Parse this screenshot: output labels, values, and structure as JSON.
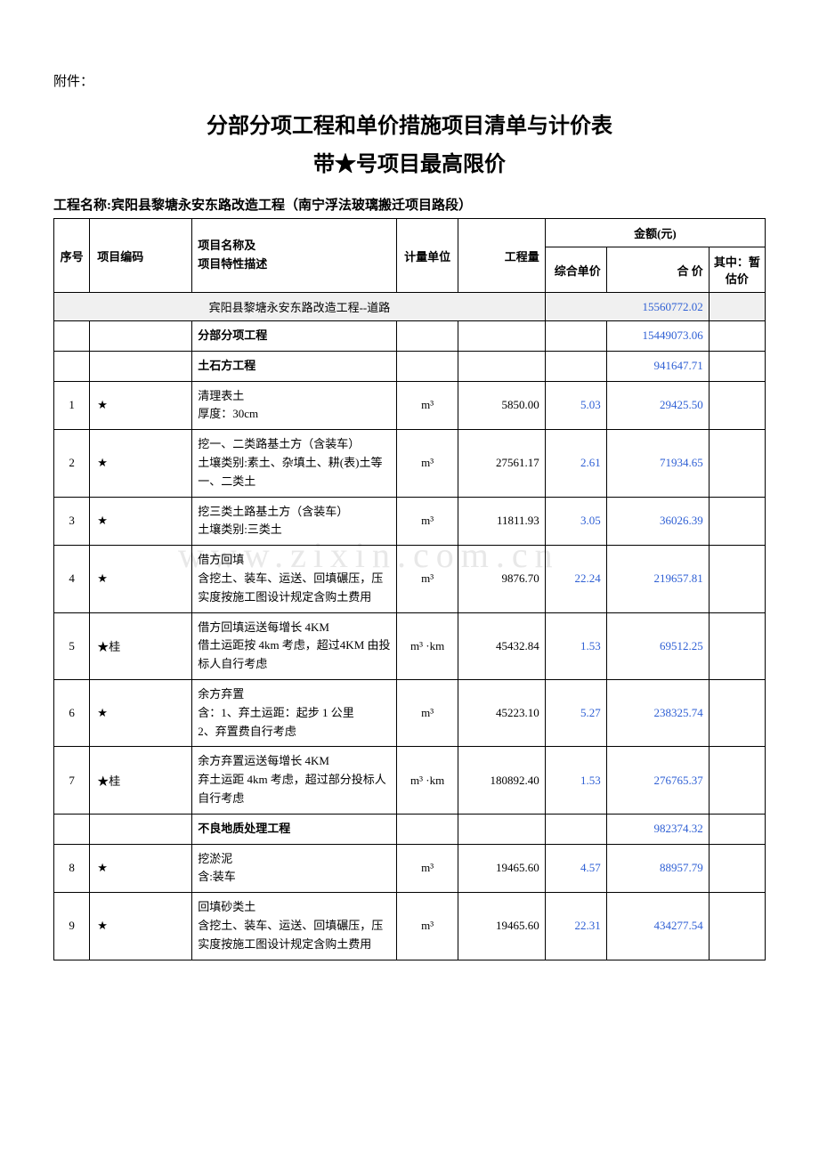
{
  "attachment_label": "附件：",
  "title_line1": "分部分项工程和单价措施项目清单与计价表",
  "title_line2": "带★号项目最高限价",
  "project_label": "工程名称:宾阳县黎塘永安东路改造工程（南宁浮法玻璃搬迁项目路段）",
  "headers": {
    "seq": "序号",
    "code": "项目编码",
    "desc": "项目名称及\n项目特性描述",
    "unit": "计量单位",
    "qty": "工程量",
    "amount": "金额(元)",
    "unit_price": "综合单价",
    "total": "合  价",
    "provisional": "其中：暂估价"
  },
  "section_title": "宾阳县黎塘永安东路改造工程--道路",
  "section_total": "15560772.02",
  "subheaders": [
    {
      "desc": "分部分项工程",
      "total": "15449073.06"
    },
    {
      "desc": "土石方工程",
      "total": "941647.71"
    }
  ],
  "rows": [
    {
      "seq": "1",
      "code": "★",
      "desc": "清理表土\n厚度：30cm",
      "unit": "m³",
      "qty": "5850.00",
      "price": "5.03",
      "total": "29425.50"
    },
    {
      "seq": "2",
      "code": "★",
      "desc": "挖一、二类路基土方（含装车）\n土壤类别:素土、杂填土、耕(表)土等一、二类土",
      "unit": "m³",
      "qty": "27561.17",
      "price": "2.61",
      "total": "71934.65"
    },
    {
      "seq": "3",
      "code": "★",
      "desc": "挖三类土路基土方（含装车）\n土壤类别:三类土",
      "unit": "m³",
      "qty": "11811.93",
      "price": "3.05",
      "total": "36026.39"
    },
    {
      "seq": "4",
      "code": "★",
      "desc": "借方回填\n含挖土、装车、运送、回填碾压，压实度按施工图设计规定含购土费用",
      "unit": "m³",
      "qty": "9876.70",
      "price": "22.24",
      "total": "219657.81"
    },
    {
      "seq": "5",
      "code": "★桂",
      "desc": "借方回填运送每增长 4KM\n借土运距按 4km 考虑，超过4KM 由投标人自行考虑",
      "unit": "m³ ·km",
      "qty": "45432.84",
      "price": "1.53",
      "total": "69512.25"
    },
    {
      "seq": "6",
      "code": "★",
      "desc": "余方弃置\n含：1、弃土运距：起步 1 公里\n    2、弃置费自行考虑",
      "unit": "m³",
      "qty": "45223.10",
      "price": "5.27",
      "total": "238325.74"
    },
    {
      "seq": "7",
      "code": "★桂",
      "desc": "余方弃置运送每增长 4KM\n弃土运距 4km 考虑，超过部分投标人自行考虑",
      "unit": "m³ ·km",
      "qty": "180892.40",
      "price": "1.53",
      "total": "276765.37"
    }
  ],
  "subheader2": {
    "desc": "不良地质处理工程",
    "total": "982374.32"
  },
  "rows2": [
    {
      "seq": "8",
      "code": "★",
      "desc": "挖淤泥\n含:装车",
      "unit": "m³",
      "qty": "19465.60",
      "price": "4.57",
      "total": "88957.79"
    },
    {
      "seq": "9",
      "code": "★",
      "desc": "回填砂类土\n含挖土、装车、运送、回填碾压，压实度按施工图设计规定含购土费用",
      "unit": "m³",
      "qty": "19465.60",
      "price": "22.31",
      "total": "434277.54"
    }
  ],
  "watermark": "www.zixin.com.cn"
}
